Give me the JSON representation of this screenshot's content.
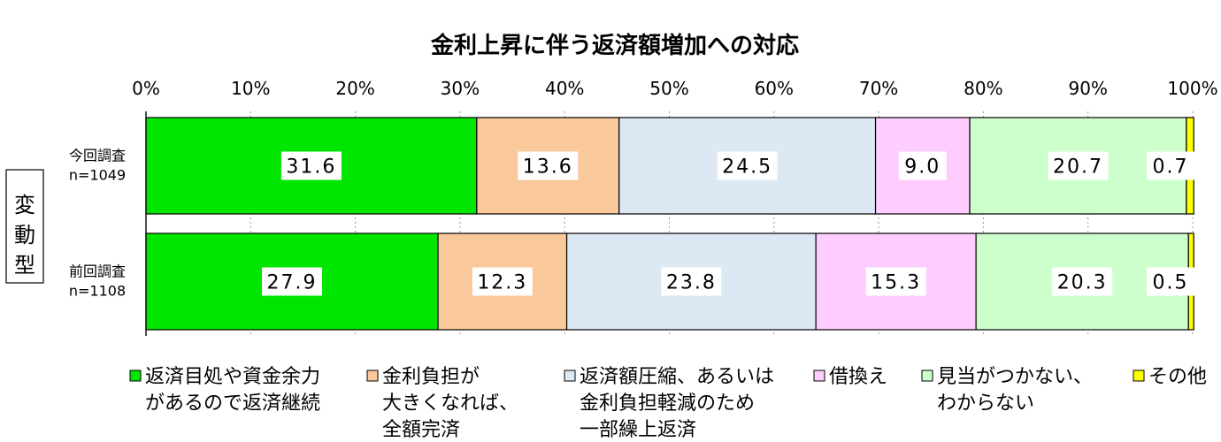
{
  "chart_data": {
    "type": "bar",
    "stacked": true,
    "orientation": "horizontal",
    "title": "金利上昇に伴う返済額増加への対応",
    "group_label": "変動型",
    "xlim": [
      0,
      100
    ],
    "x_ticks": [
      "0%",
      "10%",
      "20%",
      "30%",
      "40%",
      "50%",
      "60%",
      "70%",
      "80%",
      "90%",
      "100%"
    ],
    "categories": [
      {
        "line1": "今回調査",
        "line2": "n=1049"
      },
      {
        "line1": "前回調査",
        "line2": "n=1108"
      }
    ],
    "series": [
      {
        "name_lines": [
          "返済目処や資金余力",
          "があるので返済継続"
        ],
        "color": "#00e600",
        "values": [
          31.6,
          27.9
        ],
        "labels": [
          "31.6",
          "27.9"
        ]
      },
      {
        "name_lines": [
          "金利負担が",
          "大きくなれば、",
          "全額完済"
        ],
        "color": "#f9c89b",
        "values": [
          13.6,
          12.3
        ],
        "labels": [
          "13.6",
          "12.3"
        ]
      },
      {
        "name_lines": [
          "返済額圧縮、あるいは",
          "金利負担軽減のため",
          "一部繰上返済"
        ],
        "color": "#dde8f5",
        "values": [
          24.5,
          23.8
        ],
        "labels": [
          "24.5",
          "23.8"
        ]
      },
      {
        "name_lines": [
          "借換え"
        ],
        "color": "#ffccff",
        "values": [
          9.0,
          15.3
        ],
        "labels": [
          "9.0",
          "15.3"
        ]
      },
      {
        "name_lines": [
          "見当がつかない、",
          "わからない"
        ],
        "color": "#ccffcc",
        "values": [
          20.7,
          20.3
        ],
        "labels": [
          "20.7",
          "20.3"
        ]
      },
      {
        "name_lines": [
          "その他"
        ],
        "color": "#ffff00",
        "values": [
          0.7,
          0.5
        ],
        "labels": [
          "0.7",
          "0.5"
        ]
      }
    ]
  }
}
